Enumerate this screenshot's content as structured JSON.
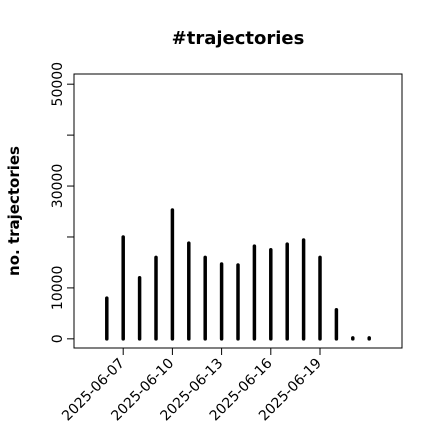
{
  "chart_data": {
    "type": "histogram-lines",
    "title": "#trajectories",
    "ylabel": "no. trajectories",
    "x": [
      "2025-06-06",
      "2025-06-07",
      "2025-06-08",
      "2025-06-09",
      "2025-06-10",
      "2025-06-11",
      "2025-06-12",
      "2025-06-13",
      "2025-06-14",
      "2025-06-15",
      "2025-06-16",
      "2025-06-17",
      "2025-06-18",
      "2025-06-19",
      "2025-06-20",
      "2025-06-21",
      "2025-06-22"
    ],
    "values": [
      8000,
      20000,
      12000,
      16000,
      25300,
      18800,
      16000,
      14700,
      14500,
      18200,
      17500,
      18600,
      19400,
      16000,
      5700,
      200,
      200
    ],
    "color": "#000000",
    "xlim": [
      "2025-06-04",
      "2025-06-24"
    ],
    "xticks": [
      "2025-06-07",
      "2025-06-10",
      "2025-06-13",
      "2025-06-16",
      "2025-06-19"
    ],
    "ylim": [
      -1800,
      52000
    ],
    "yticks": [
      0,
      10000,
      {
        "value": 20000,
        "label": null
      },
      30000,
      {
        "value": 40000,
        "label": null
      },
      50000
    ]
  }
}
